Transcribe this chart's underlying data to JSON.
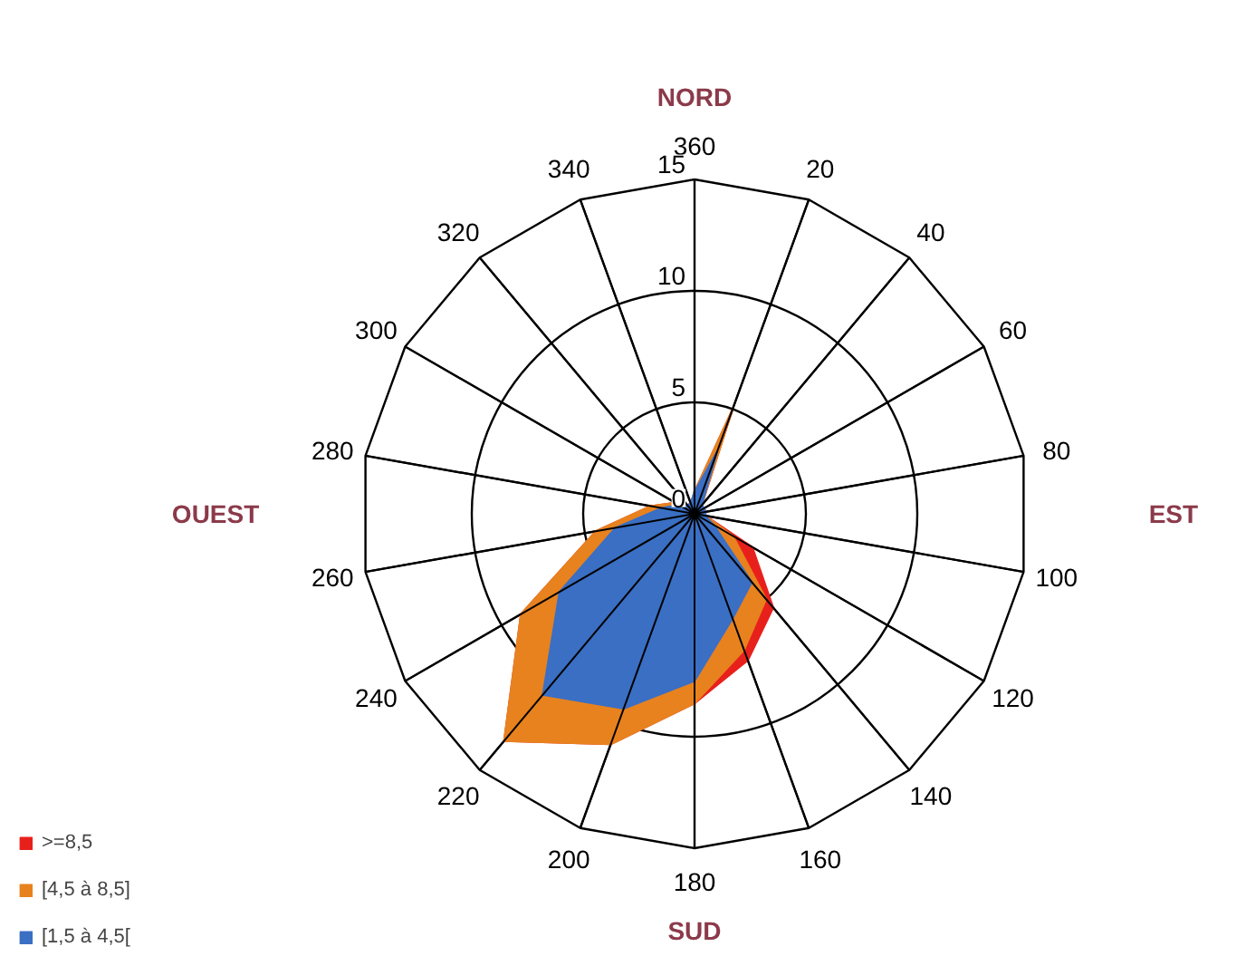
{
  "chart_data": {
    "type": "radar",
    "categories": [
      "360",
      "20",
      "40",
      "60",
      "80",
      "100",
      "120",
      "140",
      "160",
      "180",
      "200",
      "220",
      "240",
      "260",
      "280",
      "300",
      "320",
      "340"
    ],
    "series": [
      {
        "name": ">=8,5",
        "color": "#e8201c",
        "values": [
          1,
          5,
          0.5,
          0.5,
          0.5,
          0.5,
          3,
          5.5,
          7,
          8.5,
          11,
          13.3,
          9,
          4.5,
          2,
          1,
          0.5,
          0.5
        ]
      },
      {
        "name": "[4,5 à 8,5]",
        "color": "#e8821e",
        "values": [
          1,
          5,
          0.5,
          0.5,
          0.5,
          0.5,
          2,
          5,
          6.5,
          8.5,
          11,
          13.3,
          9,
          4.5,
          2,
          1,
          0.5,
          0.5
        ]
      },
      {
        "name": "[1,5 à 4,5[",
        "color": "#3a6fc4",
        "values": [
          1,
          3,
          0.5,
          0.5,
          0.5,
          0.5,
          1,
          4,
          5,
          7.5,
          9.3,
          10.6,
          7,
          3.6,
          1.5,
          0.8,
          0.5,
          0.5
        ]
      }
    ],
    "ylim": [
      0,
      15
    ],
    "yticks": [
      0,
      5,
      10,
      15
    ],
    "grid": true,
    "legend": "bottom left",
    "annotations": [
      "NORD",
      "EST",
      "SUD",
      "OUEST"
    ]
  }
}
